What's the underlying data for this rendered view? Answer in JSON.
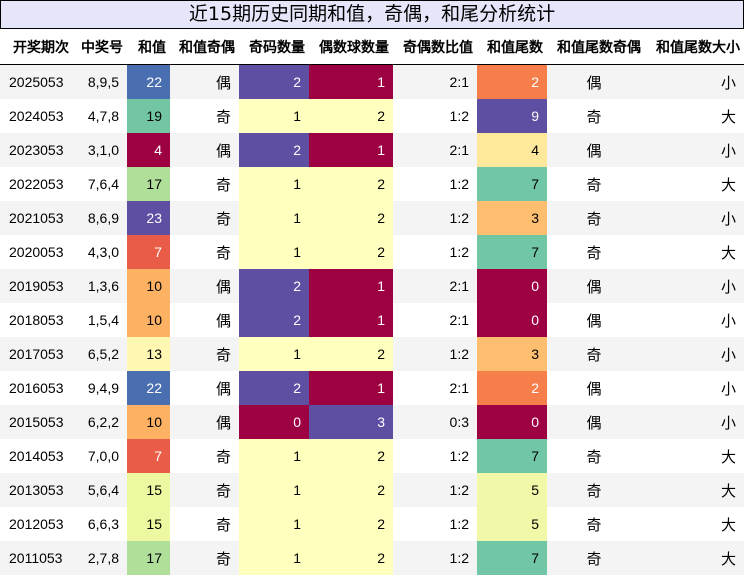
{
  "title": "近15期历史同期和值，奇偶，和尾分析统计",
  "columns": [
    "开奖期次",
    "中奖号",
    "和值",
    "和值奇偶",
    "奇码数量",
    "偶数球数量",
    "奇偶数比值",
    "和值尾数",
    "和值尾数奇偶",
    "和值尾数大小"
  ],
  "colors": {
    "sum": {
      "4": "#9e0142",
      "7": "#e95c47",
      "10": "#fdb163",
      "13": "#fff7b2",
      "15": "#eef8a0",
      "17": "#b0df9a",
      "19": "#72c6a4",
      "22": "#4a6fb0",
      "23": "#5e4fa2"
    },
    "count": {
      "0": "#9e0142",
      "1": "#ffffbe",
      "2": "#5e4fa2",
      "3": "#5e4fa2"
    },
    "even_count": {
      "0": "#9e0142",
      "1": "#9e0142",
      "2": "#ffffbe",
      "3": "#5e4fa2"
    },
    "tail": {
      "0": "#9e0142",
      "2": "#f67e4b",
      "3": "#fdbe6f",
      "4": "#fee89b",
      "5": "#f1f9a9",
      "7": "#71c6a5",
      "9": "#5e4fa2"
    }
  },
  "rows": [
    {
      "period": "2025053",
      "numbers": "8,9,5",
      "sum": "22",
      "sum_parity": "偶",
      "odd_count": "2",
      "even_count": "1",
      "ratio": "2:1",
      "tail": "2",
      "tail_parity": "偶",
      "tail_size": "小"
    },
    {
      "period": "2024053",
      "numbers": "4,7,8",
      "sum": "19",
      "sum_parity": "奇",
      "odd_count": "1",
      "even_count": "2",
      "ratio": "1:2",
      "tail": "9",
      "tail_parity": "奇",
      "tail_size": "大"
    },
    {
      "period": "2023053",
      "numbers": "3,1,0",
      "sum": "4",
      "sum_parity": "偶",
      "odd_count": "2",
      "even_count": "1",
      "ratio": "2:1",
      "tail": "4",
      "tail_parity": "偶",
      "tail_size": "小"
    },
    {
      "period": "2022053",
      "numbers": "7,6,4",
      "sum": "17",
      "sum_parity": "奇",
      "odd_count": "1",
      "even_count": "2",
      "ratio": "1:2",
      "tail": "7",
      "tail_parity": "奇",
      "tail_size": "大"
    },
    {
      "period": "2021053",
      "numbers": "8,6,9",
      "sum": "23",
      "sum_parity": "奇",
      "odd_count": "1",
      "even_count": "2",
      "ratio": "1:2",
      "tail": "3",
      "tail_parity": "奇",
      "tail_size": "小"
    },
    {
      "period": "2020053",
      "numbers": "4,3,0",
      "sum": "7",
      "sum_parity": "奇",
      "odd_count": "1",
      "even_count": "2",
      "ratio": "1:2",
      "tail": "7",
      "tail_parity": "奇",
      "tail_size": "大"
    },
    {
      "period": "2019053",
      "numbers": "1,3,6",
      "sum": "10",
      "sum_parity": "偶",
      "odd_count": "2",
      "even_count": "1",
      "ratio": "2:1",
      "tail": "0",
      "tail_parity": "偶",
      "tail_size": "小"
    },
    {
      "period": "2018053",
      "numbers": "1,5,4",
      "sum": "10",
      "sum_parity": "偶",
      "odd_count": "2",
      "even_count": "1",
      "ratio": "2:1",
      "tail": "0",
      "tail_parity": "偶",
      "tail_size": "小"
    },
    {
      "period": "2017053",
      "numbers": "6,5,2",
      "sum": "13",
      "sum_parity": "奇",
      "odd_count": "1",
      "even_count": "2",
      "ratio": "1:2",
      "tail": "3",
      "tail_parity": "奇",
      "tail_size": "小"
    },
    {
      "period": "2016053",
      "numbers": "9,4,9",
      "sum": "22",
      "sum_parity": "偶",
      "odd_count": "2",
      "even_count": "1",
      "ratio": "2:1",
      "tail": "2",
      "tail_parity": "偶",
      "tail_size": "小"
    },
    {
      "period": "2015053",
      "numbers": "6,2,2",
      "sum": "10",
      "sum_parity": "偶",
      "odd_count": "0",
      "even_count": "3",
      "ratio": "0:3",
      "tail": "0",
      "tail_parity": "偶",
      "tail_size": "小"
    },
    {
      "period": "2014053",
      "numbers": "7,0,0",
      "sum": "7",
      "sum_parity": "奇",
      "odd_count": "1",
      "even_count": "2",
      "ratio": "1:2",
      "tail": "7",
      "tail_parity": "奇",
      "tail_size": "大"
    },
    {
      "period": "2013053",
      "numbers": "5,6,4",
      "sum": "15",
      "sum_parity": "奇",
      "odd_count": "1",
      "even_count": "2",
      "ratio": "1:2",
      "tail": "5",
      "tail_parity": "奇",
      "tail_size": "大"
    },
    {
      "period": "2012053",
      "numbers": "6,6,3",
      "sum": "15",
      "sum_parity": "奇",
      "odd_count": "1",
      "even_count": "2",
      "ratio": "1:2",
      "tail": "5",
      "tail_parity": "奇",
      "tail_size": "大"
    },
    {
      "period": "2011053",
      "numbers": "2,7,8",
      "sum": "17",
      "sum_parity": "奇",
      "odd_count": "1",
      "even_count": "2",
      "ratio": "1:2",
      "tail": "7",
      "tail_parity": "奇",
      "tail_size": "大"
    }
  ]
}
